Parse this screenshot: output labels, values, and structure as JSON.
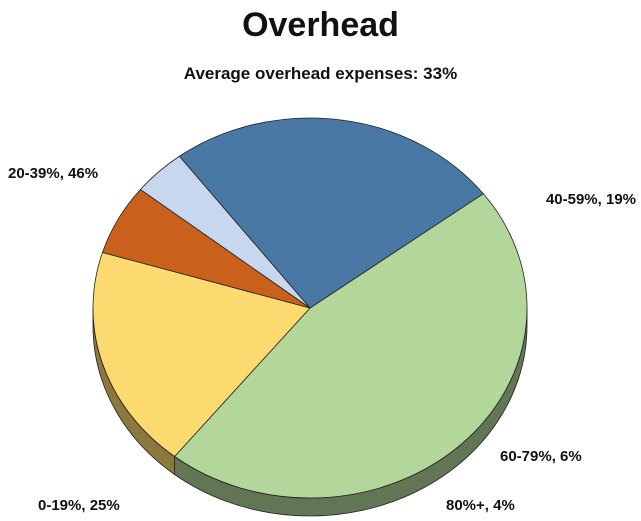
{
  "chart_data": {
    "type": "pie",
    "title": "Overhead",
    "subtitle": "Average overhead expenses: 33%",
    "three_d": true,
    "slices": [
      {
        "category": "20-39%",
        "value": 46,
        "label": "20-39%, 46%",
        "color": "#b3d69b"
      },
      {
        "category": "40-59%",
        "value": 19,
        "label": "40-59%, 19%",
        "color": "#fdda6f"
      },
      {
        "category": "60-79%",
        "value": 6,
        "label": "60-79%, 6%",
        "color": "#c9601c"
      },
      {
        "category": "80%+",
        "value": 4,
        "label": "80%+, 4%",
        "color": "#c7d8ee"
      },
      {
        "category": "0-19%",
        "value": 25,
        "label": "0-19%, 25%",
        "color": "#4a78a5"
      }
    ]
  }
}
